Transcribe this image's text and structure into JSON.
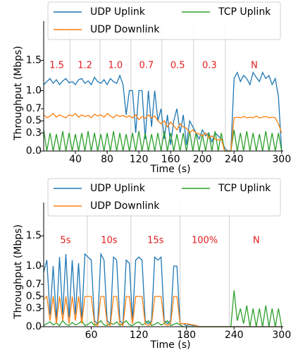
{
  "chart_data": [
    {
      "type": "line",
      "xlabel": "Time (s)",
      "ylabel": "Throughput (Mbps)",
      "x": [
        0,
        4,
        8,
        12,
        16,
        20,
        24,
        28,
        32,
        36,
        40,
        44,
        48,
        52,
        56,
        60,
        64,
        68,
        72,
        76,
        80,
        84,
        88,
        92,
        96,
        100,
        104,
        108,
        112,
        116,
        120,
        124,
        128,
        132,
        136,
        140,
        144,
        148,
        152,
        156,
        160,
        164,
        168,
        172,
        176,
        180,
        184,
        188,
        192,
        196,
        200,
        204,
        208,
        212,
        216,
        220,
        224,
        228,
        232,
        236,
        240,
        244,
        248,
        252,
        256,
        260,
        264,
        268,
        272,
        276,
        280,
        284,
        288,
        292,
        296,
        300
      ],
      "xlim": [
        0,
        302
      ],
      "xticks": [
        40,
        80,
        120,
        160,
        200,
        240,
        300
      ],
      "ylim": [
        0,
        2.15
      ],
      "yticks": [
        {
          "value": 0,
          "label": "0.0"
        },
        0.3,
        0.5,
        0.7,
        {
          "value": 1,
          "label": "1.0"
        },
        1.5
      ],
      "legend": "top",
      "phase_lines": [
        33,
        71,
        110,
        149,
        189,
        229
      ],
      "phase_labels": [
        "1.5",
        "1.2",
        "1.0",
        "0.7",
        "0.5",
        "0.3",
        "N"
      ],
      "series": [
        {
          "name": "UDP Uplink",
          "color": "#1f77b4",
          "values": [
            1.1,
            1.15,
            1.2,
            1.12,
            1.18,
            1.1,
            1.16,
            1.2,
            1.13,
            1.15,
            1.1,
            1.18,
            1.2,
            1.12,
            1.16,
            1.1,
            1.22,
            1.15,
            1.12,
            1.18,
            1.1,
            1.2,
            1.15,
            1.12,
            1.25,
            1.1,
            0.6,
            1.0,
            1.0,
            0.3,
            1.0,
            1.0,
            0.2,
            1.0,
            0.4,
            1.0,
            0.5,
            0.7,
            0.2,
            0.6,
            0.1,
            0.5,
            0.7,
            0.3,
            0.6,
            0.1,
            0.5,
            0.4,
            0.3,
            0.2,
            0.35,
            0.25,
            0.3,
            0.15,
            0.3,
            0.25,
            0.2,
            0.05,
            0,
            0,
            1.2,
            1.3,
            1.15,
            1.25,
            1.2,
            1.1,
            1.3,
            1.22,
            1.15,
            1.3,
            1.2,
            1.25,
            1.1,
            1.2,
            0.9,
            0
          ]
        },
        {
          "name": "TCP Uplink",
          "color": "#2ca02c",
          "values": [
            0.35,
            0,
            0.3,
            0,
            0.28,
            0,
            0.33,
            0,
            0.3,
            0,
            0.28,
            0,
            0.3,
            0,
            0.33,
            0,
            0.3,
            0,
            0.28,
            0,
            0.3,
            0,
            0.33,
            0,
            0.3,
            0,
            0.28,
            0,
            0.3,
            0,
            0.33,
            0,
            0.3,
            0,
            0.28,
            0,
            0.3,
            0,
            0.33,
            0,
            0.3,
            0,
            0.28,
            0,
            0.3,
            0,
            0.33,
            0,
            0.3,
            0,
            0.28,
            0,
            0.3,
            0,
            0.33,
            0,
            0.3,
            0,
            0,
            0,
            0.35,
            0,
            0.3,
            0,
            0.33,
            0,
            0.3,
            0,
            0.28,
            0,
            0.33,
            0,
            0.3,
            0,
            0.3,
            0
          ]
        },
        {
          "name": "UDP Downlink",
          "color": "#ff7f0e",
          "values": [
            0.6,
            0.55,
            0.58,
            0.62,
            0.56,
            0.6,
            0.57,
            0.55,
            0.6,
            0.58,
            0.62,
            0.56,
            0.6,
            0.57,
            0.59,
            0.55,
            0.61,
            0.58,
            0.6,
            0.56,
            0.62,
            0.58,
            0.55,
            0.6,
            0.57,
            0.59,
            0.56,
            0.58,
            0.55,
            0.6,
            0.52,
            0.57,
            0.54,
            0.6,
            0.55,
            0.58,
            0.5,
            0.45,
            0.5,
            0.4,
            0.48,
            0.42,
            0.35,
            0.45,
            0.4,
            0.38,
            0.3,
            0.35,
            0.3,
            0.28,
            0.25,
            0.3,
            0.22,
            0.25,
            0.2,
            0.18,
            0.2,
            0,
            0,
            0,
            0.55,
            0.56,
            0.55,
            0.57,
            0.55,
            0.56,
            0.55,
            0.58,
            0.55,
            0.56,
            0.57,
            0.55,
            0.56,
            0.55,
            0.45,
            0.3
          ]
        }
      ]
    },
    {
      "type": "line",
      "xlabel": "Time (s)",
      "ylabel": "Throughput (Mbps)",
      "x": [
        0,
        4,
        8,
        12,
        16,
        20,
        24,
        28,
        32,
        36,
        40,
        44,
        48,
        52,
        56,
        60,
        64,
        68,
        72,
        76,
        80,
        84,
        88,
        92,
        96,
        100,
        104,
        108,
        112,
        116,
        120,
        124,
        128,
        132,
        136,
        140,
        144,
        148,
        152,
        156,
        160,
        164,
        168,
        172,
        176,
        180,
        184,
        188,
        192,
        196,
        200,
        204,
        208,
        212,
        216,
        220,
        224,
        228,
        232,
        236,
        240,
        244,
        248,
        252,
        256,
        260,
        264,
        268,
        272,
        276,
        280,
        284,
        288,
        292,
        296,
        300
      ],
      "xlim": [
        0,
        302
      ],
      "xticks": [
        60,
        120,
        180,
        240,
        300
      ],
      "ylim": [
        0,
        2.05
      ],
      "yticks": [
        {
          "value": 0,
          "label": "0.0"
        },
        0.3,
        0.5,
        0.7,
        {
          "value": 1,
          "label": "1.0"
        },
        1.5
      ],
      "legend": "top",
      "phase_lines": [
        55,
        110,
        172,
        234
      ],
      "phase_labels": [
        "5s",
        "10s",
        "15s",
        "100%",
        "N"
      ],
      "series": [
        {
          "name": "UDP Uplink",
          "color": "#1f77b4",
          "values": [
            0.9,
            1.1,
            0.2,
            1.0,
            0.1,
            1.15,
            0.2,
            1.2,
            0.15,
            1.1,
            0.2,
            1.05,
            0.1,
            1.2,
            1.15,
            1.1,
            0.1,
            0.05,
            1.2,
            1.1,
            0.1,
            0.05,
            1.15,
            1.1,
            0.1,
            0.05,
            1.1,
            1.05,
            0.1,
            1.1,
            1.15,
            1.1,
            0.1,
            0.05,
            0.1,
            1.15,
            1.1,
            1.15,
            0.1,
            0.05,
            0.1,
            1.0,
            1.0,
            0.05,
            0.05,
            0.02,
            0.03,
            0.02,
            0.02,
            0,
            0,
            0,
            0,
            0,
            0,
            0,
            0,
            0,
            0,
            0,
            0,
            0,
            0,
            0,
            0,
            0,
            0,
            0,
            0,
            0,
            0,
            0,
            0,
            0,
            0,
            0
          ]
        },
        {
          "name": "TCP Uplink",
          "color": "#2ca02c",
          "values": [
            0.02,
            0.05,
            0.08,
            0.03,
            0.06,
            0.02,
            0.1,
            0.04,
            0.02,
            0.07,
            0.03,
            0.05,
            0.1,
            0.02,
            0.04,
            0.08,
            0.02,
            0.05,
            0.1,
            0.03,
            0.02,
            0.06,
            0.04,
            0.08,
            0.02,
            0.05,
            0.1,
            0.03,
            0.02,
            0.06,
            0.08,
            0.03,
            0.05,
            0.1,
            0.02,
            0.04,
            0.07,
            0.03,
            0.05,
            0.1,
            0.02,
            0.04,
            0.06,
            0.03,
            0,
            0,
            0,
            0,
            0,
            0,
            0,
            0,
            0,
            0,
            0,
            0,
            0,
            0,
            0,
            0,
            0.6,
            0.1,
            0.3,
            0.05,
            0.35,
            0,
            0.3,
            0,
            0.3,
            0,
            0.35,
            0,
            0.3,
            0,
            0.3,
            0
          ]
        },
        {
          "name": "UDP Downlink",
          "color": "#ff7f0e",
          "values": [
            0.45,
            0.5,
            0.1,
            0.5,
            0.05,
            0.5,
            0.1,
            0.5,
            0.05,
            0.5,
            0.1,
            0.5,
            0.05,
            0.5,
            0.5,
            0.5,
            0.05,
            0.02,
            0.5,
            0.5,
            0.05,
            0.02,
            0.5,
            0.5,
            0.05,
            0.02,
            0.5,
            0.5,
            0.05,
            0.5,
            0.5,
            0.5,
            0.05,
            0.02,
            0.05,
            0.5,
            0.5,
            0.5,
            0.05,
            0.02,
            0.05,
            0.5,
            0.5,
            0.05,
            0.05,
            0.05,
            0.04,
            0.03,
            0.02,
            0,
            0,
            0,
            0,
            0,
            0,
            0,
            0,
            0,
            0,
            0,
            0,
            0,
            0,
            0,
            0,
            0,
            0,
            0,
            0,
            0,
            0,
            0,
            0,
            0,
            0,
            0
          ]
        }
      ]
    }
  ]
}
